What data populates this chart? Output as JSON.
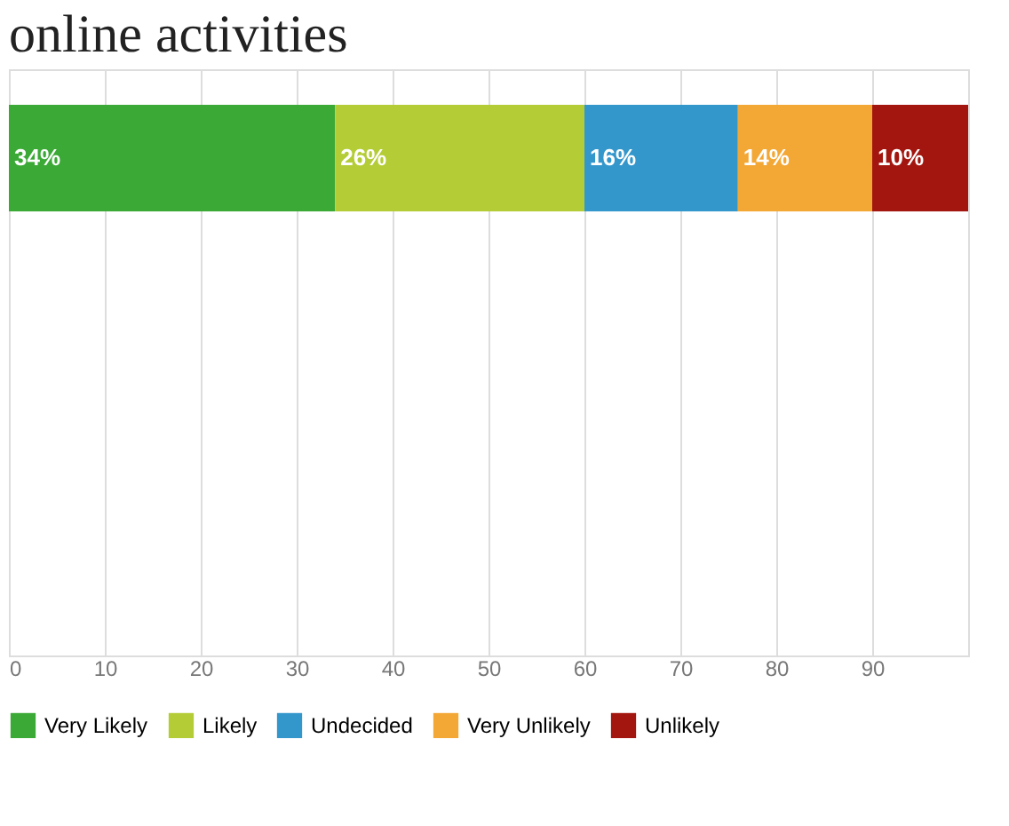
{
  "chart_data": {
    "type": "bar",
    "title": "online activities",
    "orientation": "horizontal",
    "stacked": true,
    "categories": [
      null
    ],
    "series": [
      {
        "name": "Very Likely",
        "color": "#3aa935",
        "values": [
          34
        ],
        "value_labels": [
          "34%"
        ]
      },
      {
        "name": "Likely",
        "color": "#b4cc36",
        "values": [
          26
        ],
        "value_labels": [
          "26%"
        ]
      },
      {
        "name": "Undecided",
        "color": "#3497cc",
        "values": [
          16
        ],
        "value_labels": [
          "16%"
        ]
      },
      {
        "name": "Very Unlikely",
        "color": "#f3a734",
        "values": [
          14
        ],
        "value_labels": [
          "14%"
        ]
      },
      {
        "name": "Unlikely",
        "color": "#a3160f",
        "values": [
          10
        ],
        "value_labels": [
          "10%"
        ]
      }
    ],
    "xlim": [
      0,
      100
    ],
    "xticks": [
      0,
      10,
      20,
      30,
      40,
      50,
      60,
      70,
      80,
      90
    ],
    "grid": "x",
    "legend": "bottom"
  }
}
